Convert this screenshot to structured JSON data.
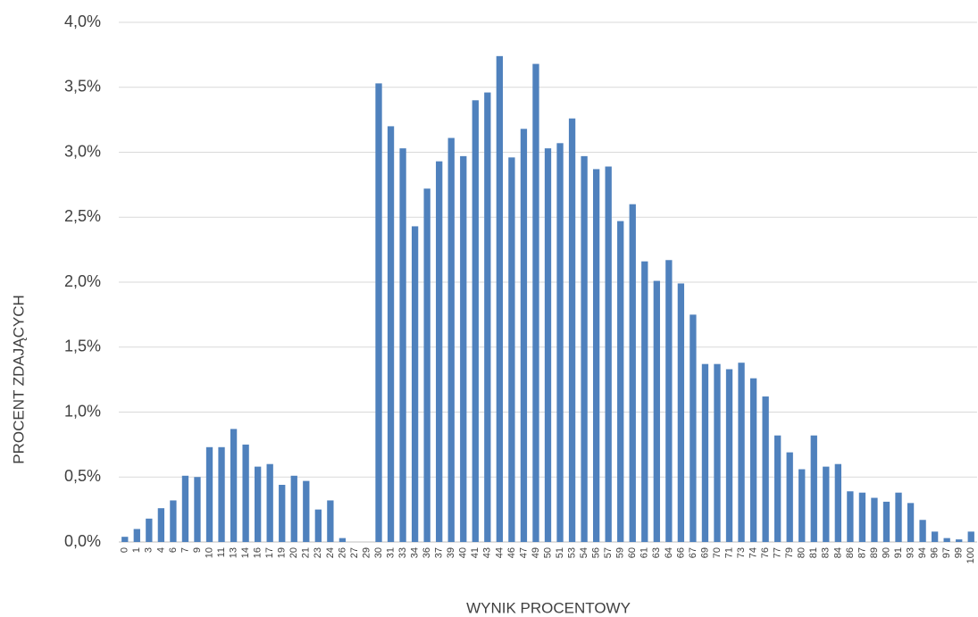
{
  "chart_data": {
    "type": "bar",
    "x_label": "WYNIK PROCENTOWY",
    "y_label": "PROCENT ZDAJĄCYCH",
    "categories": [
      "0",
      "1",
      "3",
      "4",
      "6",
      "7",
      "9",
      "10",
      "11",
      "13",
      "14",
      "16",
      "17",
      "19",
      "20",
      "21",
      "23",
      "24",
      "26",
      "27",
      "29",
      "30",
      "31",
      "33",
      "34",
      "36",
      "37",
      "39",
      "40",
      "41",
      "43",
      "44",
      "46",
      "47",
      "49",
      "50",
      "51",
      "53",
      "54",
      "56",
      "57",
      "59",
      "60",
      "61",
      "63",
      "64",
      "66",
      "67",
      "69",
      "70",
      "71",
      "73",
      "74",
      "76",
      "77",
      "79",
      "80",
      "81",
      "83",
      "84",
      "86",
      "87",
      "89",
      "90",
      "91",
      "93",
      "94",
      "96",
      "97",
      "99",
      "100"
    ],
    "values": [
      0.04,
      0.1,
      0.18,
      0.26,
      0.32,
      0.51,
      0.5,
      0.73,
      0.73,
      0.87,
      0.75,
      0.58,
      0.6,
      0.44,
      0.51,
      0.47,
      0.25,
      0.32,
      0.03,
      0,
      0,
      3.53,
      3.2,
      3.03,
      2.43,
      2.72,
      2.93,
      3.11,
      2.97,
      3.4,
      3.46,
      3.74,
      2.96,
      3.18,
      3.68,
      3.03,
      3.07,
      3.26,
      2.97,
      2.87,
      2.89,
      2.47,
      2.6,
      2.16,
      2.01,
      2.17,
      1.99,
      1.75,
      1.37,
      1.37,
      1.33,
      1.38,
      1.26,
      1.12,
      0.82,
      0.69,
      0.56,
      0.82,
      0.58,
      0.6,
      0.39,
      0.38,
      0.34,
      0.31,
      0.38,
      0.3,
      0.17,
      0.08,
      0.03,
      0.02,
      0.08
    ],
    "color": "#4f81bd",
    "ylim": [
      0,
      4
    ],
    "yticks": [
      {
        "value": 0,
        "label": "0,0%"
      },
      {
        "value": 0.5,
        "label": "0,5%"
      },
      {
        "value": 1,
        "label": "1,0%"
      },
      {
        "value": 1.5,
        "label": "1,5%"
      },
      {
        "value": 2,
        "label": "2,0%"
      },
      {
        "value": 2.5,
        "label": "2,5%"
      },
      {
        "value": 3,
        "label": "3,0%"
      },
      {
        "value": 3.5,
        "label": "3,5%"
      },
      {
        "value": 4,
        "label": "4,0%"
      }
    ],
    "grid": true
  }
}
